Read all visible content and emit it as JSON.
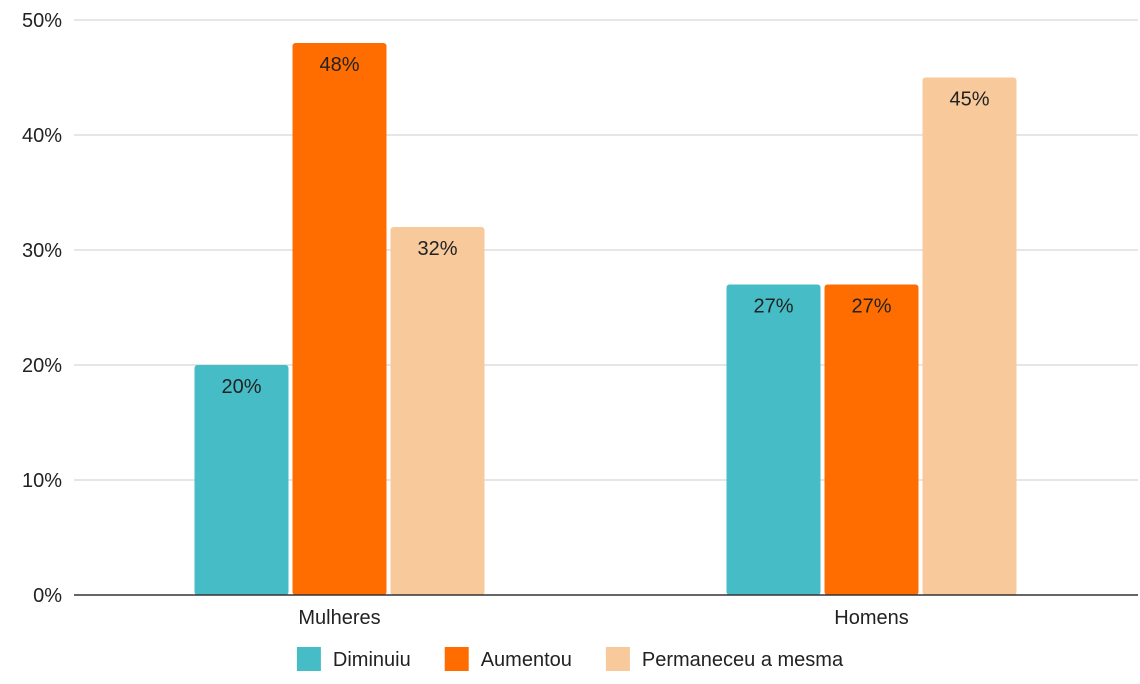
{
  "chart_data": {
    "type": "bar",
    "categories": [
      "Mulheres",
      "Homens"
    ],
    "series": [
      {
        "name": "Diminuiu",
        "values": [
          20,
          27
        ],
        "labels": [
          "20%",
          "27%"
        ],
        "color": "#46bdc6"
      },
      {
        "name": "Aumentou",
        "values": [
          48,
          27
        ],
        "labels": [
          "48%",
          "27%"
        ],
        "color": "#ff6d01"
      },
      {
        "name": "Permaneceu a mesma",
        "values": [
          32,
          45
        ],
        "labels": [
          "32%",
          "45%"
        ],
        "color": "#f8c99b"
      }
    ],
    "ylim": [
      0,
      50
    ],
    "yticks": [
      0,
      10,
      20,
      30,
      40,
      50
    ],
    "ytick_labels": [
      "0%",
      "10%",
      "20%",
      "30%",
      "40%",
      "50%"
    ],
    "grid": true,
    "legend_position": "bottom",
    "title": "",
    "xlabel": "",
    "ylabel": ""
  }
}
